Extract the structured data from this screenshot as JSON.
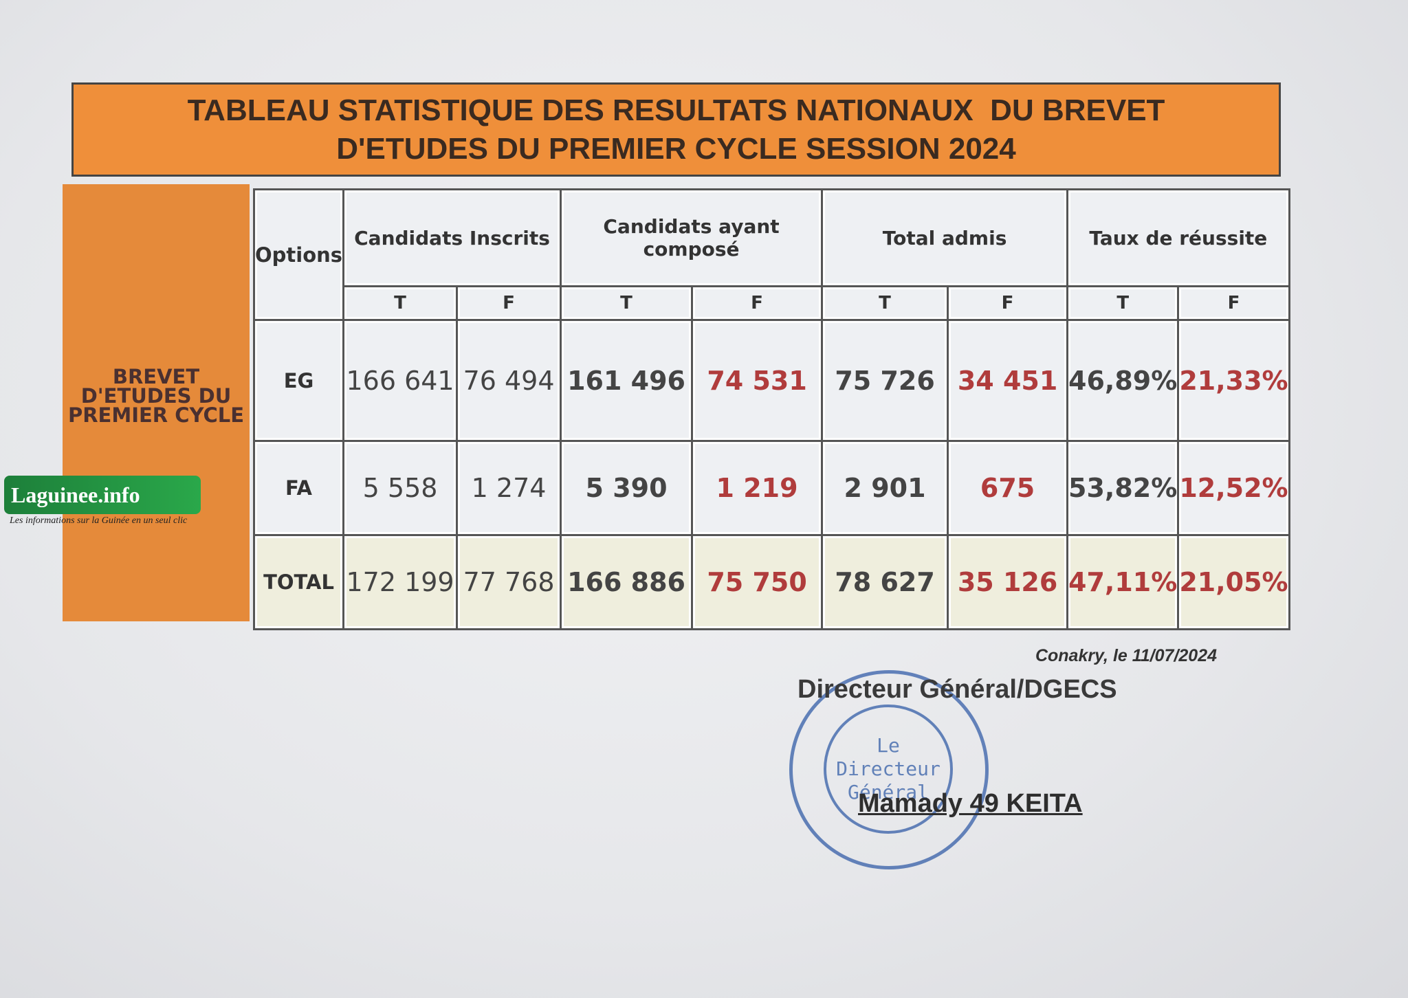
{
  "title": [
    "TABLEAU STATISTIQUE DES RESULTATS NATIONAUX  DU BREVET",
    "D'ETUDES DU PREMIER CYCLE SESSION 2024"
  ],
  "table": {
    "side_label": [
      "BREVET",
      "D'ETUDES DU",
      "PREMIER CYCLE"
    ],
    "options_header": "Options",
    "groups": [
      "Candidats Inscrits",
      "Candidats ayant composé",
      "Total admis",
      "Taux de réussite"
    ],
    "subheaders": [
      "T",
      "F",
      "T",
      "F",
      "T",
      "F",
      "T",
      "F"
    ],
    "rows": [
      [
        "EG",
        "166 641",
        "76 494",
        "161 496",
        "74 531",
        "75 726",
        "34 451",
        "46,89%",
        "21,33%"
      ],
      [
        "FA",
        "5 558",
        "1 274",
        "5 390",
        "1 219",
        "2 901",
        "675",
        "53,82%",
        "12,52%"
      ],
      [
        "TOTAL",
        "172 199",
        "77 768",
        "166 886",
        "75 750",
        "78 627",
        "35 126",
        "47,11%",
        "21,05%"
      ]
    ]
  },
  "footer": {
    "place_date": "Conakry, le 11/07/2024",
    "position": "Directeur Général/DGECS",
    "stamp": [
      "Le",
      "Directeur",
      "Général"
    ],
    "name": "Mamady 49 KEITA"
  },
  "watermark": {
    "brand": "Laguinee.info",
    "tagline": "Les informations sur la Guinée en un seul clic"
  }
}
